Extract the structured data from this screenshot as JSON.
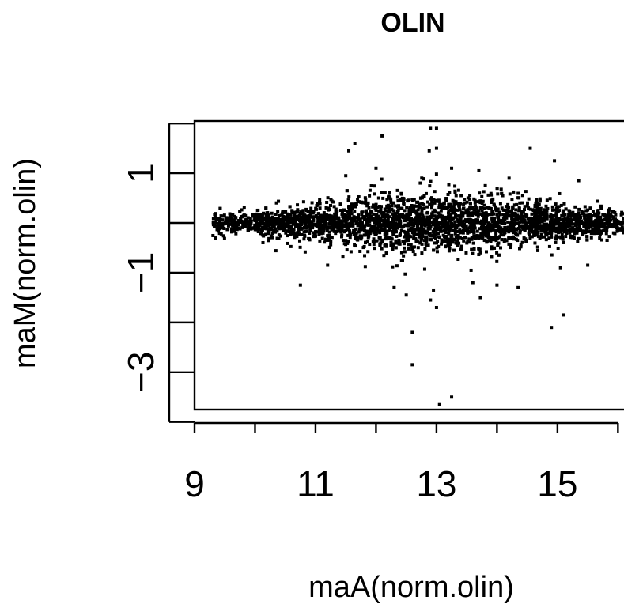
{
  "chart_data": {
    "type": "scatter",
    "title": "OLIN",
    "xlabel": "maA(norm.olin)",
    "ylabel": "maM(norm.olin)",
    "xlim": [
      9.0,
      16.1
    ],
    "ylim": [
      -3.75,
      2.05
    ],
    "x_ticks": [
      9,
      10,
      11,
      12,
      13,
      14,
      15,
      16
    ],
    "x_tick_labels": [
      "9",
      "",
      "11",
      "",
      "13",
      "",
      "15",
      ""
    ],
    "y_ticks": [
      -4,
      -3,
      -2,
      -1,
      0,
      1,
      2
    ],
    "y_tick_labels": [
      "",
      "−3",
      "",
      "−1",
      "",
      "1",
      ""
    ],
    "marker": "square",
    "marker_color": "#000000",
    "grid": false,
    "legend": "none",
    "outliers": [
      {
        "x": 11.55,
        "y": 1.45
      },
      {
        "x": 11.65,
        "y": 1.6
      },
      {
        "x": 12.1,
        "y": 1.75
      },
      {
        "x": 12.9,
        "y": 1.9
      },
      {
        "x": 13.0,
        "y": 1.9
      },
      {
        "x": 13.0,
        "y": 1.5
      },
      {
        "x": 12.88,
        "y": 1.45
      },
      {
        "x": 14.55,
        "y": 1.5
      },
      {
        "x": 14.95,
        "y": 1.25
      },
      {
        "x": 12.6,
        "y": -2.2
      },
      {
        "x": 12.6,
        "y": -2.85
      },
      {
        "x": 13.25,
        "y": -3.5
      },
      {
        "x": 13.05,
        "y": -3.65
      },
      {
        "x": 14.9,
        "y": -2.1
      },
      {
        "x": 15.1,
        "y": -1.85
      },
      {
        "x": 12.9,
        "y": -1.55
      },
      {
        "x": 13.0,
        "y": -1.7
      },
      {
        "x": 12.5,
        "y": -1.45
      },
      {
        "x": 10.75,
        "y": -1.25
      },
      {
        "x": 11.2,
        "y": -0.85
      },
      {
        "x": 15.5,
        "y": -0.85
      },
      {
        "x": 15.05,
        "y": -0.9
      },
      {
        "x": 11.5,
        "y": 0.95
      },
      {
        "x": 12.0,
        "y": 1.1
      },
      {
        "x": 13.25,
        "y": 1.1
      },
      {
        "x": 13.7,
        "y": 1.05
      },
      {
        "x": 14.2,
        "y": 0.9
      },
      {
        "x": 15.35,
        "y": 0.85
      },
      {
        "x": 12.3,
        "y": -1.3
      },
      {
        "x": 13.6,
        "y": -1.2
      },
      {
        "x": 14.0,
        "y": -1.25
      },
      {
        "x": 14.35,
        "y": -1.3
      },
      {
        "x": 12.95,
        "y": -1.35
      }
    ],
    "bulk": {
      "n_points": 3400,
      "x_range": [
        9.3,
        16.1
      ],
      "center_y": 0.0,
      "spread_profile": [
        {
          "x": 9.3,
          "sd": 0.1
        },
        {
          "x": 10.0,
          "sd": 0.11
        },
        {
          "x": 11.0,
          "sd": 0.16
        },
        {
          "x": 12.0,
          "sd": 0.25
        },
        {
          "x": 13.0,
          "sd": 0.29
        },
        {
          "x": 14.0,
          "sd": 0.25
        },
        {
          "x": 15.0,
          "sd": 0.17
        },
        {
          "x": 16.1,
          "sd": 0.11
        }
      ],
      "x_density": [
        {
          "x": 9.3,
          "w": 0.35
        },
        {
          "x": 10.5,
          "w": 0.75
        },
        {
          "x": 12.0,
          "w": 1.0
        },
        {
          "x": 13.0,
          "w": 1.0
        },
        {
          "x": 14.5,
          "w": 0.9
        },
        {
          "x": 16.1,
          "w": 0.6
        }
      ]
    }
  }
}
